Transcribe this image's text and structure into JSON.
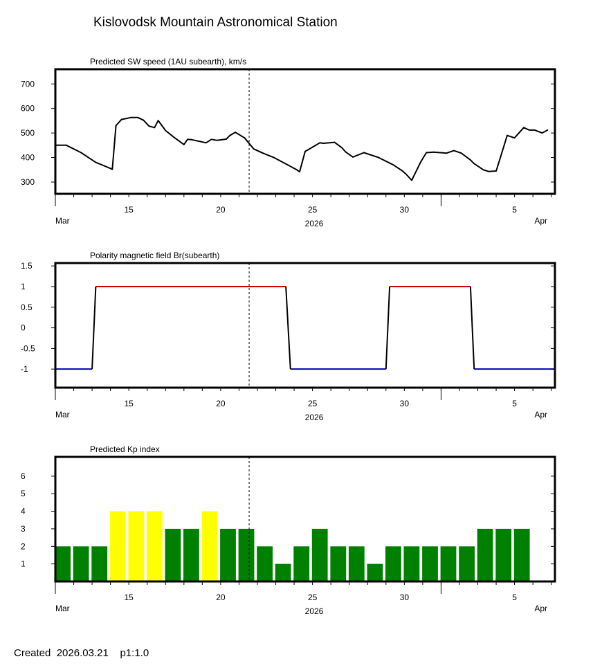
{
  "page": {
    "title": "Kislovodsk Mountain Astronomical Station",
    "footer": {
      "created_label": "Created",
      "created_date": "2026.03.21",
      "scale": "p1:1.0"
    }
  },
  "colors": {
    "axis": "#000000",
    "speed_line": "#000000",
    "polarity_positive": "#d00000",
    "polarity_negative": "#0000b0",
    "polarity_transition": "#000000",
    "kp_green": "#008000",
    "kp_yellow": "#ffff00"
  },
  "time_axis": {
    "start_day": 0,
    "end_day": 27.2,
    "current_day": 10.55,
    "day_ticks": [
      1,
      2,
      3,
      4,
      5,
      6,
      7,
      8,
      9,
      10,
      11,
      12,
      13,
      14,
      15,
      16,
      17,
      18,
      19,
      20,
      21,
      22,
      23,
      24,
      25,
      26,
      27
    ],
    "month_ticks": [
      0,
      21
    ],
    "labels": [
      {
        "day": 4,
        "text": "15"
      },
      {
        "day": 9,
        "text": "20"
      },
      {
        "day": 14,
        "text": "25"
      },
      {
        "day": 19,
        "text": "30"
      },
      {
        "day": 25,
        "text": "5"
      }
    ],
    "month_labels": [
      {
        "day": 0,
        "text": "Mar"
      },
      {
        "day": 26.5,
        "text": "Apr"
      }
    ],
    "year": "2026"
  },
  "chart_data": [
    {
      "type": "line",
      "title": "Predicted SW speed (1AU subearth), km/s",
      "xlabel": "2026",
      "ylabel": "",
      "ylim": [
        252,
        760
      ],
      "yticks": [
        {
          "value": 300,
          "label": "300"
        },
        {
          "value": 400,
          "label": "400"
        },
        {
          "value": 500,
          "label": "500"
        },
        {
          "value": 600,
          "label": "600"
        },
        {
          "value": 700,
          "label": "700"
        }
      ],
      "series": [
        {
          "name": "SW speed",
          "x": [
            0,
            0.6,
            1.4,
            2.2,
            2.7,
            3.1,
            3.3,
            3.6,
            4.1,
            4.5,
            4.8,
            5.1,
            5.4,
            5.6,
            6.0,
            6.5,
            7.0,
            7.2,
            7.4,
            7.9,
            8.2,
            8.5,
            8.8,
            9.3,
            9.5,
            9.8,
            10.3,
            10.8,
            11.3,
            11.9,
            12.6,
            13.1,
            13.3,
            13.6,
            13.9,
            14.4,
            14.6,
            15.2,
            15.6,
            15.8,
            16.2,
            16.8,
            17.6,
            18.4,
            18.9,
            19.1,
            19.4,
            19.9,
            20.2,
            20.6,
            21.3,
            21.7,
            22.1,
            22.6,
            22.8,
            23.1,
            23.3,
            23.6,
            24.0,
            24.6,
            25.0,
            25.5,
            25.8,
            26.1,
            26.5,
            26.8
          ],
          "values": [
            450,
            450,
            420,
            380,
            365,
            352,
            530,
            555,
            563,
            563,
            552,
            528,
            522,
            551,
            510,
            480,
            453,
            474,
            473,
            465,
            460,
            474,
            470,
            475,
            490,
            503,
            480,
            435,
            418,
            400,
            372,
            352,
            342,
            425,
            438,
            460,
            458,
            462,
            440,
            423,
            402,
            420,
            400,
            370,
            345,
            332,
            307,
            383,
            420,
            422,
            418,
            428,
            418,
            390,
            375,
            360,
            350,
            343,
            345,
            490,
            480,
            522,
            512,
            512,
            500,
            512
          ]
        }
      ]
    },
    {
      "type": "line",
      "title": "Polarity magnetic field  Br(subearth)",
      "xlabel": "2026",
      "ylabel": "",
      "ylim": [
        -1.45,
        1.57
      ],
      "yticks": [
        {
          "value": 1.5,
          "label": "1.5"
        },
        {
          "value": 1,
          "label": "1"
        },
        {
          "value": 0.5,
          "label": "0.5"
        },
        {
          "value": 0,
          "label": "0"
        },
        {
          "value": -0.5,
          "label": "-0.5"
        },
        {
          "value": -1,
          "label": "-1"
        }
      ],
      "series": [
        {
          "name": "negative",
          "segments": [
            [
              0,
              2.0
            ],
            [
              12.8,
              18.0
            ],
            [
              22.8,
              27.2
            ]
          ],
          "value": -1
        },
        {
          "name": "positive",
          "segments": [
            [
              2.2,
              12.55
            ],
            [
              18.2,
              22.6
            ]
          ],
          "value": 1
        },
        {
          "name": "transitions",
          "x": [
            2.0,
            2.2,
            12.55,
            12.8,
            18.0,
            18.2,
            22.6,
            22.8
          ]
        }
      ]
    },
    {
      "type": "bar",
      "title": "Predicted Kp index",
      "xlabel": "2026",
      "ylabel": "",
      "ylim": [
        0,
        7.1
      ],
      "yticks": [
        {
          "value": 1,
          "label": "1"
        },
        {
          "value": 2,
          "label": "2"
        },
        {
          "value": 3,
          "label": "3"
        },
        {
          "value": 4,
          "label": "4"
        },
        {
          "value": 5,
          "label": "5"
        },
        {
          "value": 6,
          "label": "6"
        }
      ],
      "bars": [
        {
          "day": 0.4,
          "value": 2,
          "color": "green"
        },
        {
          "day": 1.4,
          "value": 2,
          "color": "green"
        },
        {
          "day": 2.4,
          "value": 2,
          "color": "green"
        },
        {
          "day": 3.4,
          "value": 4,
          "color": "yellow"
        },
        {
          "day": 4.4,
          "value": 4,
          "color": "yellow"
        },
        {
          "day": 5.4,
          "value": 4,
          "color": "yellow"
        },
        {
          "day": 6.4,
          "value": 3,
          "color": "green"
        },
        {
          "day": 7.4,
          "value": 3,
          "color": "green"
        },
        {
          "day": 8.4,
          "value": 4,
          "color": "yellow"
        },
        {
          "day": 9.4,
          "value": 3,
          "color": "green"
        },
        {
          "day": 10.4,
          "value": 3,
          "color": "green"
        },
        {
          "day": 11.4,
          "value": 2,
          "color": "green"
        },
        {
          "day": 12.4,
          "value": 1,
          "color": "green"
        },
        {
          "day": 13.4,
          "value": 2,
          "color": "green"
        },
        {
          "day": 14.4,
          "value": 3,
          "color": "green"
        },
        {
          "day": 15.4,
          "value": 2,
          "color": "green"
        },
        {
          "day": 16.4,
          "value": 2,
          "color": "green"
        },
        {
          "day": 17.4,
          "value": 1,
          "color": "green"
        },
        {
          "day": 18.4,
          "value": 2,
          "color": "green"
        },
        {
          "day": 19.4,
          "value": 2,
          "color": "green"
        },
        {
          "day": 20.4,
          "value": 2,
          "color": "green"
        },
        {
          "day": 21.4,
          "value": 2,
          "color": "green"
        },
        {
          "day": 22.4,
          "value": 2,
          "color": "green"
        },
        {
          "day": 23.4,
          "value": 3,
          "color": "green"
        },
        {
          "day": 24.4,
          "value": 3,
          "color": "green"
        },
        {
          "day": 25.4,
          "value": 3,
          "color": "green"
        }
      ]
    }
  ]
}
